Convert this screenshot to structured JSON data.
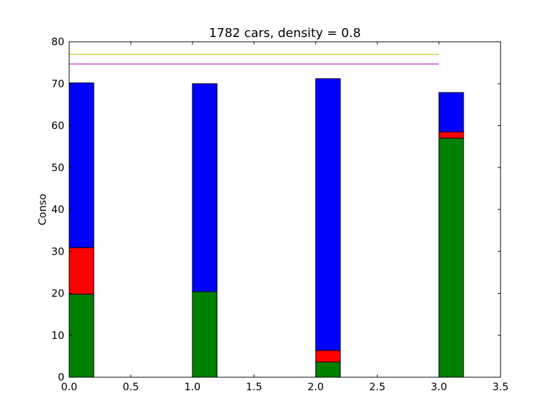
{
  "chart_data": {
    "type": "bar",
    "title": "1782 cars, density = 0.8",
    "xlabel": "",
    "ylabel": "Conso",
    "xlim": [
      0.0,
      3.5
    ],
    "ylim": [
      0,
      80
    ],
    "x_ticks": [
      "0.0",
      "0.5",
      "1.0",
      "1.5",
      "2.0",
      "2.5",
      "3.0",
      "3.5"
    ],
    "y_ticks": [
      "0",
      "10",
      "20",
      "30",
      "40",
      "50",
      "60",
      "70",
      "80"
    ],
    "x_tick_values": [
      0.0,
      0.5,
      1.0,
      1.5,
      2.0,
      2.5,
      3.0,
      3.5
    ],
    "y_tick_values": [
      0,
      10,
      20,
      30,
      40,
      50,
      60,
      70,
      80
    ],
    "grid": false,
    "stacked": true,
    "bar_width": 0.2,
    "bar_positions": [
      0.0,
      1.0,
      2.0,
      3.0
    ],
    "series": [
      {
        "color": "#008000",
        "values": [
          19.8,
          20.4,
          3.6,
          57.0
        ]
      },
      {
        "color": "#ff0000",
        "values": [
          11.1,
          0.0,
          2.8,
          1.5
        ]
      },
      {
        "color": "#0000ff",
        "values": [
          39.3,
          49.6,
          64.8,
          9.4
        ]
      }
    ],
    "hlines": [
      {
        "y": 77.0,
        "x_start": 0.0,
        "x_end": 3.0,
        "color": "#bfbf00"
      },
      {
        "y": 74.7,
        "x_start": 0.0,
        "x_end": 3.0,
        "color": "#bf00bf"
      }
    ]
  }
}
